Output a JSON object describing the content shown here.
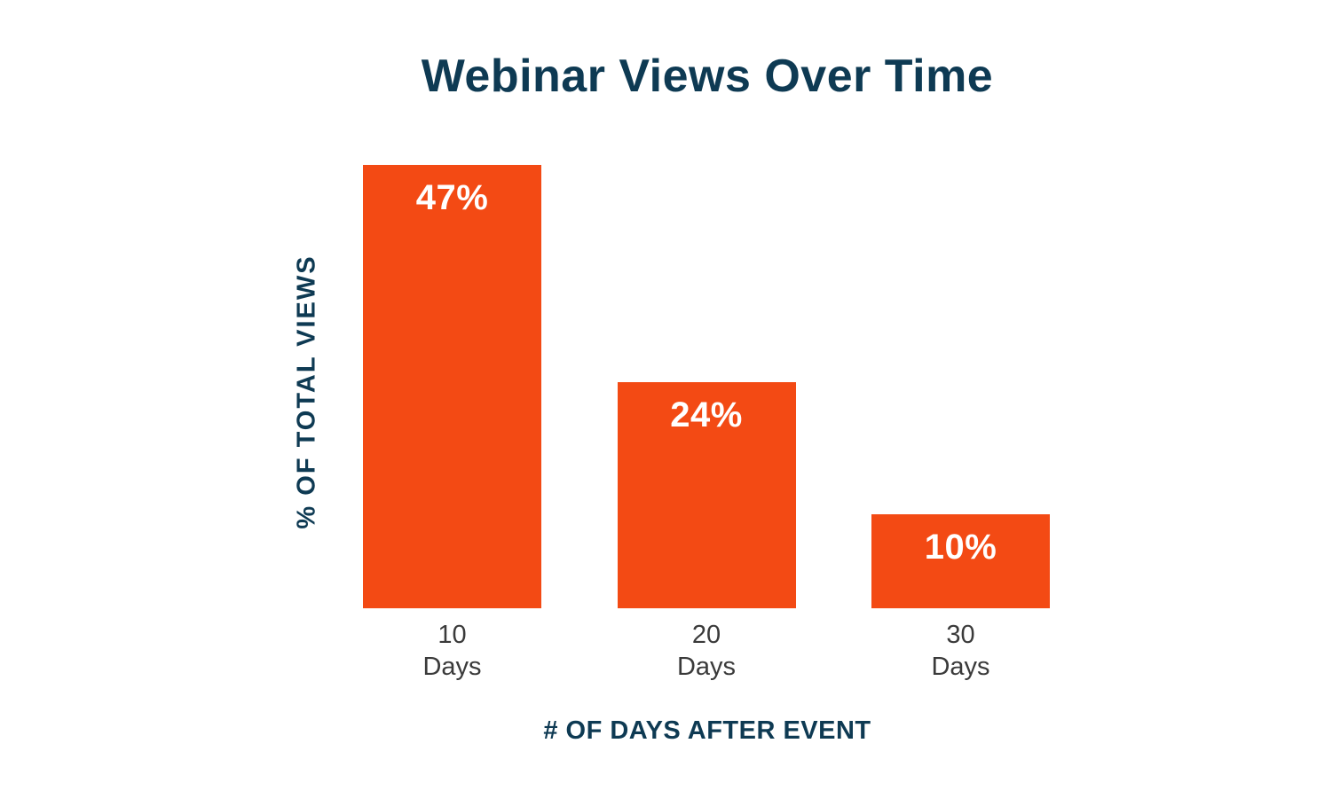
{
  "chart_data": {
    "type": "bar",
    "title": "Webinar Views Over Time",
    "xlabel": "# OF DAYS AFTER EVENT",
    "ylabel": "% OF TOTAL VIEWS",
    "categories": [
      "10 Days",
      "20 Days",
      "30 Days"
    ],
    "tick_lines": [
      [
        "10",
        "Days"
      ],
      [
        "20",
        "Days"
      ],
      [
        "30",
        "Days"
      ]
    ],
    "values": [
      47,
      24,
      10
    ],
    "value_labels": [
      "47%",
      "24%",
      "10%"
    ],
    "ylim": [
      0,
      47
    ],
    "grid": false,
    "legend_position": "none",
    "value_label_position": "inside-top",
    "colors": {
      "bar": "#F34A14",
      "value_label": "#FFFFFF",
      "title": "#0E3A53",
      "axis_label": "#0E3A53",
      "tick_label": "#3A3A3A",
      "background": "#FFFFFF"
    }
  }
}
